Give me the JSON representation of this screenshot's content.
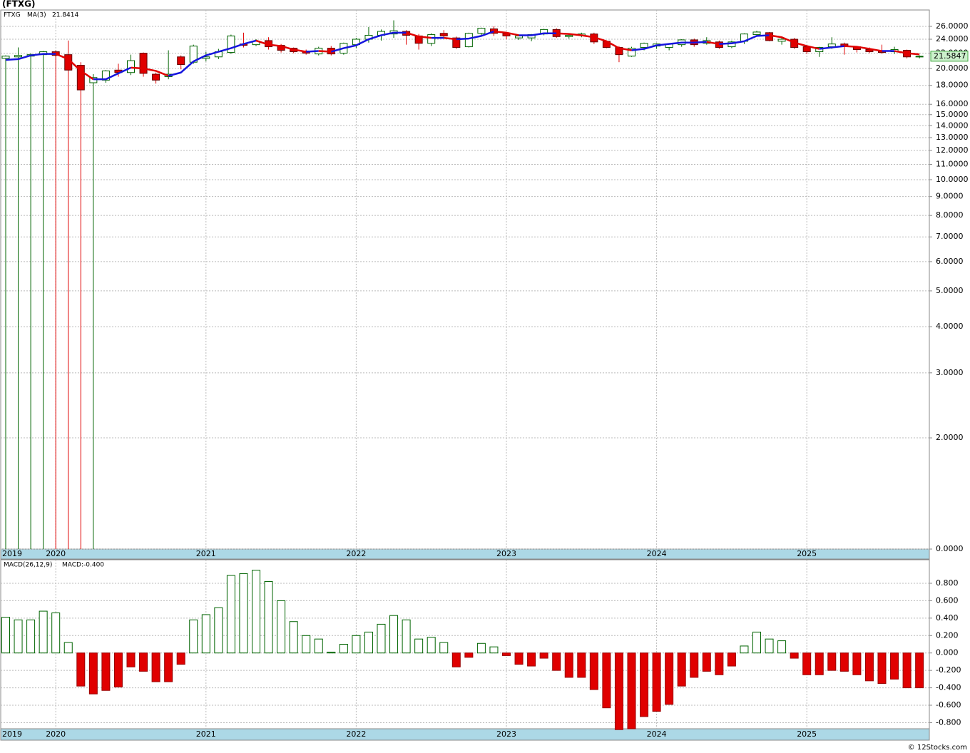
{
  "title": "(FTXG)",
  "footer": "© 12Stocks.com",
  "chart_data": [
    {
      "type": "candlestick",
      "ticker_label": "FTXG",
      "ma_label": "MA(3)",
      "categories": [
        "2019",
        null,
        null,
        null,
        "2020",
        null,
        null,
        null,
        null,
        null,
        null,
        null,
        null,
        null,
        null,
        null,
        "2021",
        null,
        null,
        null,
        null,
        null,
        null,
        null,
        null,
        null,
        null,
        null,
        "2022",
        null,
        null,
        null,
        null,
        null,
        null,
        null,
        null,
        null,
        null,
        null,
        "2023",
        null,
        null,
        null,
        null,
        null,
        null,
        null,
        null,
        null,
        null,
        null,
        "2024",
        null,
        null,
        null,
        null,
        null,
        null,
        null,
        null,
        null,
        null,
        null,
        "2025",
        null,
        null,
        null,
        null,
        null,
        null,
        null,
        null,
        null
      ],
      "open": [
        21.3,
        21.5,
        21.6,
        21.8,
        22.2,
        21.8,
        20.4,
        18.3,
        18.6,
        19.8,
        19.5,
        22.0,
        19.3,
        19.0,
        21.5,
        20.8,
        21.3,
        21.5,
        22.1,
        23.3,
        23.2,
        23.8,
        23.1,
        22.7,
        22.3,
        21.9,
        22.7,
        22.0,
        23.2,
        24.0,
        24.6,
        24.8,
        25.2,
        24.5,
        23.4,
        24.9,
        24.2,
        22.9,
        24.9,
        25.6,
        24.9,
        24.2,
        24.2,
        24.8,
        25.5,
        24.4,
        24.6,
        24.8,
        23.7,
        22.8,
        21.6,
        22.8,
        23.0,
        22.8,
        23.2,
        23.9,
        23.4,
        23.6,
        22.9,
        23.7,
        24.7,
        25.0,
        23.7,
        24.0,
        22.9,
        22.2,
        22.9,
        23.3,
        22.9,
        22.5,
        22.3,
        22.2,
        22.4,
        21.5
      ],
      "high": [
        21.7,
        22.8,
        22.0,
        22.3,
        22.4,
        23.8,
        20.8,
        19.3,
        19.8,
        20.6,
        21.8,
        22.1,
        19.5,
        22.4,
        21.7,
        23.2,
        22.2,
        22.6,
        24.7,
        25.0,
        24.0,
        24.3,
        23.3,
        22.8,
        22.5,
        22.9,
        23.0,
        23.5,
        24.2,
        25.9,
        25.5,
        27.0,
        25.4,
        24.8,
        24.9,
        25.4,
        24.4,
        25.0,
        25.8,
        26.0,
        25.1,
        24.7,
        24.8,
        25.6,
        25.7,
        24.8,
        25.0,
        25.0,
        23.8,
        23.0,
        22.9,
        23.5,
        23.4,
        23.4,
        24.0,
        24.1,
        24.3,
        23.8,
        23.8,
        24.9,
        25.3,
        25.1,
        24.2,
        24.2,
        23.1,
        22.9,
        24.3,
        23.5,
        23.0,
        22.8,
        23.2,
        22.9,
        22.5,
        21.7
      ],
      "low": [
        0,
        0,
        0,
        0,
        0,
        0,
        0,
        0,
        18.3,
        19.0,
        19.2,
        19.0,
        18.2,
        18.7,
        19.9,
        20.6,
        20.9,
        21.2,
        21.9,
        22.8,
        23.0,
        22.5,
        22.1,
        22.0,
        21.8,
        21.7,
        21.7,
        21.8,
        22.7,
        23.5,
        23.8,
        24.2,
        23.2,
        22.5,
        23.0,
        24.3,
        22.6,
        22.8,
        24.6,
        24.5,
        24.0,
        23.9,
        23.7,
        24.6,
        24.2,
        24.1,
        24.3,
        23.3,
        22.7,
        20.8,
        21.5,
        22.4,
        22.6,
        22.4,
        22.9,
        22.9,
        23.2,
        22.6,
        22.7,
        23.3,
        24.5,
        23.7,
        23.2,
        22.6,
        21.9,
        21.5,
        22.6,
        21.8,
        22.1,
        22.0,
        21.9,
        21.9,
        21.3,
        21.3
      ],
      "close": [
        21.6,
        21.7,
        21.8,
        22.2,
        21.7,
        19.8,
        17.5,
        18.9,
        19.7,
        19.5,
        21.0,
        19.4,
        18.6,
        19.3,
        20.5,
        23.0,
        21.5,
        22.2,
        24.5,
        23.1,
        23.7,
        22.9,
        22.4,
        22.2,
        22.0,
        22.7,
        21.9,
        23.4,
        24.0,
        24.6,
        25.2,
        25.3,
        24.6,
        23.4,
        24.7,
        24.5,
        22.8,
        24.9,
        25.7,
        24.9,
        24.5,
        24.5,
        24.7,
        25.5,
        24.4,
        24.6,
        24.8,
        23.6,
        22.8,
        21.8,
        22.7,
        23.4,
        23.3,
        23.3,
        23.9,
        23.2,
        23.8,
        22.8,
        23.6,
        24.8,
        25.1,
        23.8,
        24.0,
        22.8,
        22.2,
        22.8,
        23.3,
        23.0,
        22.5,
        22.2,
        22.1,
        22.5,
        21.5,
        21.5847
      ],
      "up_color": "#006400",
      "down_color": "#e00000",
      "ma": {
        "values": [
          21.1,
          21.2,
          21.7,
          21.9,
          21.9,
          21.2,
          19.7,
          18.7,
          18.7,
          19.4,
          20.1,
          20.0,
          19.7,
          19.1,
          19.5,
          20.9,
          21.7,
          22.2,
          22.7,
          23.3,
          23.8,
          23.2,
          23.0,
          22.5,
          22.2,
          22.3,
          22.2,
          22.7,
          23.1,
          24.0,
          24.6,
          25.0,
          25.0,
          24.4,
          24.2,
          24.2,
          24.0,
          24.1,
          24.5,
          25.2,
          25.0,
          24.6,
          24.6,
          24.9,
          24.9,
          24.8,
          24.6,
          24.3,
          23.7,
          22.7,
          22.4,
          22.6,
          23.1,
          23.3,
          23.5,
          23.5,
          23.6,
          23.3,
          23.4,
          23.7,
          24.5,
          24.6,
          24.3,
          23.5,
          23.0,
          22.6,
          22.8,
          23.0,
          22.9,
          22.6,
          22.3,
          22.3,
          22.0,
          21.8414
        ],
        "rising_color": "#1515dd",
        "falling_color": "#e00000"
      },
      "ylim": [
        1,
        28.8
      ],
      "log_scale": true,
      "grid": true,
      "yticks": [
        {
          "value": 26,
          "label": "26.0000"
        },
        {
          "value": 24,
          "label": "24.0000"
        },
        {
          "value": 22,
          "label": "22.0000"
        },
        {
          "value": 20,
          "label": "20.0000"
        },
        {
          "value": 18,
          "label": "18.0000"
        },
        {
          "value": 16,
          "label": "16.0000"
        },
        {
          "value": 15,
          "label": "15.0000"
        },
        {
          "value": 14,
          "label": "14.0000"
        },
        {
          "value": 13,
          "label": "13.0000"
        },
        {
          "value": 12,
          "label": "12.0000"
        },
        {
          "value": 11,
          "label": "11.0000"
        },
        {
          "value": 10,
          "label": "10.0000"
        },
        {
          "value": 9,
          "label": "9.0000"
        },
        {
          "value": 8,
          "label": "8.0000"
        },
        {
          "value": 7,
          "label": "7.0000"
        },
        {
          "value": 6,
          "label": "6.0000"
        },
        {
          "value": 5,
          "label": "5.0000"
        },
        {
          "value": 4,
          "label": "4.0000"
        },
        {
          "value": 3,
          "label": "3.0000"
        },
        {
          "value": 2,
          "label": "2.0000"
        },
        {
          "value": 0,
          "label": "0.0000"
        }
      ]
    },
    {
      "type": "bar",
      "title": "MACD(26,12,9)",
      "readout": "MACD:-0.400",
      "categories": [
        "2019",
        null,
        null,
        null,
        "2020",
        null,
        null,
        null,
        null,
        null,
        null,
        null,
        null,
        null,
        null,
        null,
        "2021",
        null,
        null,
        null,
        null,
        null,
        null,
        null,
        null,
        null,
        null,
        null,
        "2022",
        null,
        null,
        null,
        null,
        null,
        null,
        null,
        null,
        null,
        null,
        null,
        "2023",
        null,
        null,
        null,
        null,
        null,
        null,
        null,
        null,
        null,
        null,
        null,
        "2024",
        null,
        null,
        null,
        null,
        null,
        null,
        null,
        null,
        null,
        null,
        null,
        "2025",
        null,
        null,
        null,
        null,
        null,
        null,
        null,
        null,
        null
      ],
      "values": [
        0.41,
        0.38,
        0.38,
        0.48,
        0.46,
        0.12,
        -0.38,
        -0.47,
        -0.43,
        -0.39,
        -0.16,
        -0.21,
        -0.33,
        -0.33,
        -0.13,
        0.38,
        0.44,
        0.52,
        0.89,
        0.91,
        0.95,
        0.82,
        0.6,
        0.36,
        0.2,
        0.16,
        0.01,
        0.1,
        0.2,
        0.24,
        0.33,
        0.43,
        0.38,
        0.16,
        0.18,
        0.12,
        -0.16,
        -0.05,
        0.11,
        0.07,
        -0.03,
        -0.13,
        -0.15,
        -0.06,
        -0.2,
        -0.28,
        -0.28,
        -0.42,
        -0.63,
        -0.88,
        -0.87,
        -0.73,
        -0.67,
        -0.59,
        -0.38,
        -0.28,
        -0.21,
        -0.25,
        -0.15,
        0.08,
        0.24,
        0.16,
        0.14,
        -0.06,
        -0.25,
        -0.25,
        -0.2,
        -0.21,
        -0.25,
        -0.32,
        -0.35,
        -0.3,
        -0.4,
        -0.4
      ],
      "positive_color": "#006400",
      "negative_color": "#e00000",
      "ylim": [
        -0.87,
        1.07
      ],
      "grid": true,
      "yticks": [
        {
          "value": 0.8,
          "label": "0.800"
        },
        {
          "value": 0.6,
          "label": "0.600"
        },
        {
          "value": 0.4,
          "label": "0.400"
        },
        {
          "value": 0.2,
          "label": "0.200"
        },
        {
          "value": 0,
          "label": "0.000"
        },
        {
          "value": -0.2,
          "label": "-0.200"
        },
        {
          "value": -0.4,
          "label": "-0.400"
        },
        {
          "value": -0.6,
          "label": "-0.600"
        },
        {
          "value": -0.8,
          "label": "-0.800"
        }
      ]
    }
  ]
}
